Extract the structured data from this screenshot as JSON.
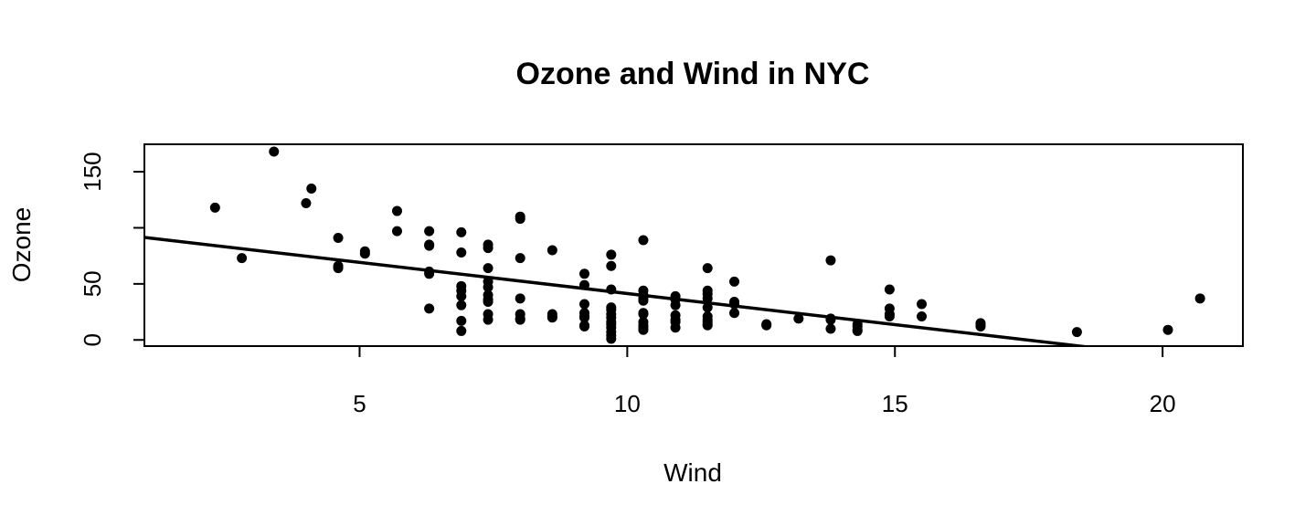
{
  "chart_data": {
    "type": "scatter",
    "title": "Ozone and Wind in NYC",
    "xlabel": "Wind",
    "ylabel": "Ozone",
    "xlim": [
      0.98,
      21.5
    ],
    "ylim": [
      -5.5,
      174.5
    ],
    "xticks": [
      5,
      10,
      15,
      20
    ],
    "yticks": [
      0,
      50,
      100,
      150
    ],
    "ytick_labels": [
      "0",
      "50",
      "",
      "150"
    ],
    "grid": false,
    "regression_line": {
      "intercept": 96.9,
      "slope": -5.55
    },
    "series": [
      {
        "points": [
          [
            2.3,
            118
          ],
          [
            2.8,
            73
          ],
          [
            3.4,
            168
          ],
          [
            4.0,
            122
          ],
          [
            4.1,
            135
          ],
          [
            4.6,
            91
          ],
          [
            4.6,
            66
          ],
          [
            4.6,
            64
          ],
          [
            5.1,
            79
          ],
          [
            5.1,
            77
          ],
          [
            5.7,
            115
          ],
          [
            5.7,
            97
          ],
          [
            6.3,
            97
          ],
          [
            6.3,
            85
          ],
          [
            6.3,
            84
          ],
          [
            6.3,
            61
          ],
          [
            6.3,
            59
          ],
          [
            6.3,
            28
          ],
          [
            6.9,
            96
          ],
          [
            6.9,
            78
          ],
          [
            6.9,
            48
          ],
          [
            6.9,
            44
          ],
          [
            6.9,
            39
          ],
          [
            6.9,
            31
          ],
          [
            6.9,
            17
          ],
          [
            6.9,
            8
          ],
          [
            7.4,
            85
          ],
          [
            7.4,
            82
          ],
          [
            7.4,
            64
          ],
          [
            7.4,
            52
          ],
          [
            7.4,
            47
          ],
          [
            7.4,
            40
          ],
          [
            7.4,
            36
          ],
          [
            7.4,
            34
          ],
          [
            7.4,
            23
          ],
          [
            7.4,
            18
          ],
          [
            8.0,
            110
          ],
          [
            8.0,
            108
          ],
          [
            8.0,
            73
          ],
          [
            8.0,
            37
          ],
          [
            8.0,
            23
          ],
          [
            8.0,
            19
          ],
          [
            8.0,
            18
          ],
          [
            8.6,
            80
          ],
          [
            8.6,
            23
          ],
          [
            8.6,
            21
          ],
          [
            8.6,
            20
          ],
          [
            9.2,
            59
          ],
          [
            9.2,
            49
          ],
          [
            9.2,
            32
          ],
          [
            9.2,
            24
          ],
          [
            9.2,
            21
          ],
          [
            9.2,
            20
          ],
          [
            9.2,
            13
          ],
          [
            9.2,
            12
          ],
          [
            9.7,
            76
          ],
          [
            9.7,
            66
          ],
          [
            9.7,
            45
          ],
          [
            9.7,
            29
          ],
          [
            9.7,
            27
          ],
          [
            9.7,
            23
          ],
          [
            9.7,
            20
          ],
          [
            9.7,
            16
          ],
          [
            9.7,
            14
          ],
          [
            9.7,
            11
          ],
          [
            9.7,
            7
          ],
          [
            9.7,
            4
          ],
          [
            9.7,
            1
          ],
          [
            10.3,
            89
          ],
          [
            10.3,
            44
          ],
          [
            10.3,
            40
          ],
          [
            10.3,
            37
          ],
          [
            10.3,
            35
          ],
          [
            10.3,
            24
          ],
          [
            10.3,
            23
          ],
          [
            10.3,
            16
          ],
          [
            10.3,
            13
          ],
          [
            10.3,
            11
          ],
          [
            10.3,
            9
          ],
          [
            10.9,
            39
          ],
          [
            10.9,
            36
          ],
          [
            10.9,
            31
          ],
          [
            10.9,
            22
          ],
          [
            10.9,
            18
          ],
          [
            10.9,
            16
          ],
          [
            10.9,
            11
          ],
          [
            11.5,
            64
          ],
          [
            11.5,
            44
          ],
          [
            11.5,
            41
          ],
          [
            11.5,
            37
          ],
          [
            11.5,
            29
          ],
          [
            11.5,
            21
          ],
          [
            11.5,
            18
          ],
          [
            11.5,
            16
          ],
          [
            11.5,
            14
          ],
          [
            11.5,
            13
          ],
          [
            12.0,
            52
          ],
          [
            12.0,
            34
          ],
          [
            12.0,
            32
          ],
          [
            12.0,
            24
          ],
          [
            12.6,
            14
          ],
          [
            12.6,
            13
          ],
          [
            13.2,
            19
          ],
          [
            13.8,
            71
          ],
          [
            13.8,
            19
          ],
          [
            13.8,
            18
          ],
          [
            13.8,
            10
          ],
          [
            14.3,
            14
          ],
          [
            14.3,
            12
          ],
          [
            14.3,
            9
          ],
          [
            14.3,
            8
          ],
          [
            14.9,
            45
          ],
          [
            14.9,
            28
          ],
          [
            14.9,
            23
          ],
          [
            14.9,
            21
          ],
          [
            15.5,
            32
          ],
          [
            15.5,
            21
          ],
          [
            16.6,
            15
          ],
          [
            16.6,
            13
          ],
          [
            16.6,
            12
          ],
          [
            18.4,
            7
          ],
          [
            20.1,
            9
          ],
          [
            20.7,
            37
          ]
        ]
      }
    ]
  }
}
